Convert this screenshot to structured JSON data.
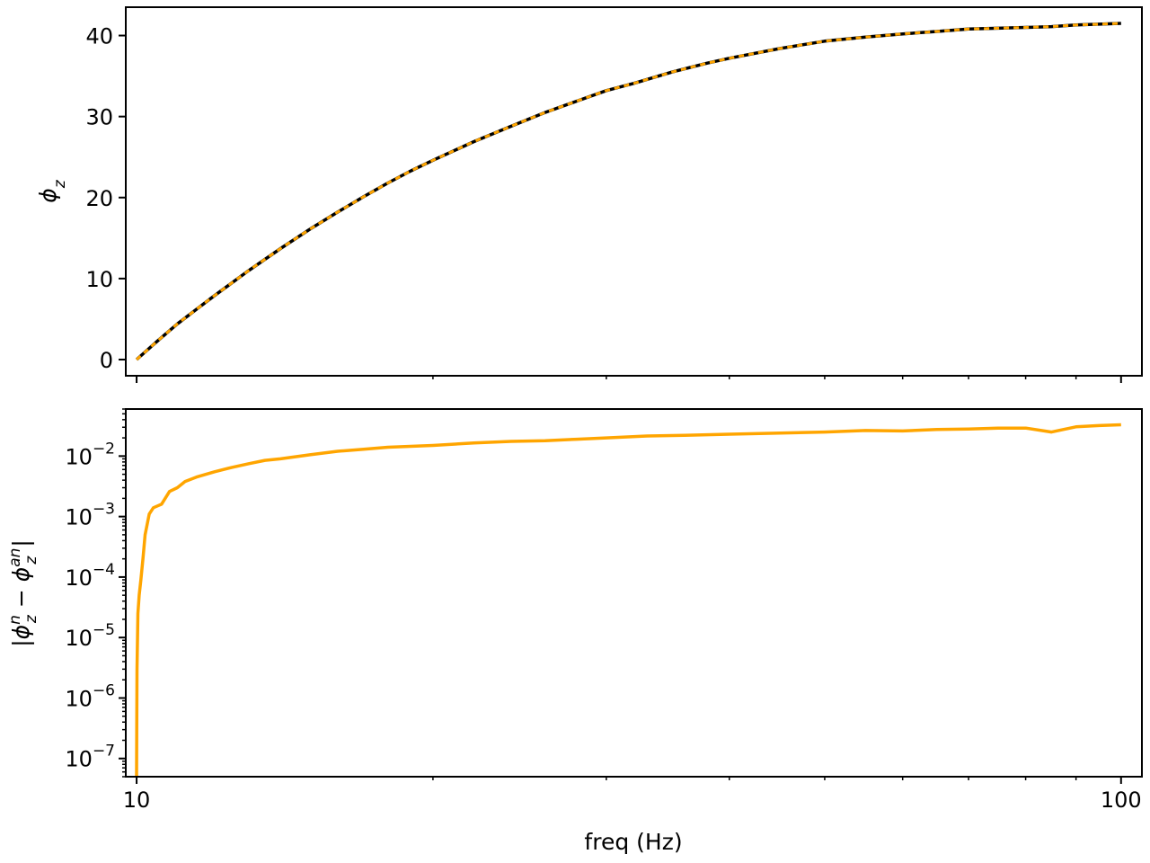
{
  "chart_data": [
    {
      "type": "line",
      "xscale": "log",
      "xlim": [
        9.75,
        105
      ],
      "ylim": [
        -2,
        43.5
      ],
      "xlabel": "",
      "ylabel": "ϕ_z",
      "x_ticks": [
        10,
        100
      ],
      "y_ticks": [
        0,
        10,
        20,
        30,
        40
      ],
      "y_tick_labels": [
        "0",
        "10",
        "20",
        "30",
        "40"
      ],
      "grid": false,
      "series": [
        {
          "style": "solid",
          "color": "#000000",
          "x": [
            10,
            10.5,
            11,
            11.5,
            12,
            13,
            14,
            15,
            16,
            17,
            18,
            19,
            20,
            22,
            24,
            26,
            28,
            30,
            32,
            35,
            38,
            40,
            45,
            50,
            55,
            60,
            65,
            70,
            75,
            80,
            85,
            90,
            95,
            100
          ],
          "y": [
            0.0,
            2.3,
            4.4,
            6.2,
            7.9,
            11.0,
            13.7,
            16.1,
            18.2,
            20.1,
            21.8,
            23.3,
            24.6,
            26.9,
            28.8,
            30.5,
            31.9,
            33.2,
            34.1,
            35.5,
            36.6,
            37.2,
            38.4,
            39.3,
            39.8,
            40.2,
            40.5,
            40.8,
            40.9,
            41.0,
            41.1,
            41.3,
            41.4,
            41.5
          ]
        },
        {
          "style": "dashed",
          "color": "#ffa500",
          "x": [
            10,
            10.5,
            11,
            11.5,
            12,
            13,
            14,
            15,
            16,
            17,
            18,
            19,
            20,
            22,
            24,
            26,
            28,
            30,
            32,
            35,
            38,
            40,
            45,
            50,
            55,
            60,
            65,
            70,
            75,
            80,
            85,
            90,
            95,
            100
          ],
          "y": [
            0.0,
            2.3,
            4.4,
            6.2,
            7.9,
            11.0,
            13.7,
            16.1,
            18.2,
            20.1,
            21.8,
            23.3,
            24.6,
            26.9,
            28.8,
            30.5,
            31.9,
            33.2,
            34.1,
            35.5,
            36.6,
            37.2,
            38.4,
            39.3,
            39.8,
            40.2,
            40.5,
            40.8,
            40.9,
            41.0,
            41.1,
            41.3,
            41.4,
            41.5
          ]
        }
      ]
    },
    {
      "type": "line",
      "xscale": "log",
      "yscale": "log",
      "xlim": [
        9.75,
        105
      ],
      "ylim": [
        5e-08,
        0.06
      ],
      "xlabel": "freq (Hz)",
      "ylabel": "|ϕ_z^n − ϕ_z^an|",
      "x_ticks": [
        10,
        100
      ],
      "x_tick_labels": [
        "10",
        "100"
      ],
      "y_ticks": [
        1e-07,
        1e-06,
        1e-05,
        0.0001,
        0.001,
        0.01
      ],
      "y_tick_labels": [
        [
          "10",
          "−7"
        ],
        [
          "10",
          "−6"
        ],
        [
          "10",
          "−5"
        ],
        [
          "10",
          "−4"
        ],
        [
          "10",
          "−3"
        ],
        [
          "10",
          "−2"
        ]
      ],
      "grid": false,
      "series": [
        {
          "style": "solid",
          "color": "#ffa500",
          "x": [
            10.0,
            10.003,
            10.01,
            10.03,
            10.06,
            10.1,
            10.15,
            10.2,
            10.3,
            10.4,
            10.5,
            10.6,
            10.8,
            11.0,
            11.2,
            11.5,
            12.0,
            12.5,
            13.0,
            13.5,
            14.0,
            15.0,
            16.0,
            17.0,
            18.0,
            20.0,
            22.0,
            24.0,
            26.0,
            28.0,
            30.0,
            33.0,
            36.0,
            40.0,
            45.0,
            50.0,
            55.0,
            60.0,
            65.0,
            70.0,
            75.0,
            80.0,
            85.0,
            90.0,
            95.0,
            100.0
          ],
          "y": [
            5e-08,
            3e-07,
            3e-06,
            2.5e-05,
            5e-05,
            9e-05,
            0.0002,
            0.0005,
            0.0011,
            0.0014,
            0.0015,
            0.0016,
            0.0026,
            0.003,
            0.0038,
            0.0045,
            0.0055,
            0.0065,
            0.0075,
            0.0085,
            0.009,
            0.0105,
            0.012,
            0.013,
            0.014,
            0.015,
            0.0165,
            0.0175,
            0.018,
            0.019,
            0.02,
            0.0215,
            0.022,
            0.023,
            0.024,
            0.025,
            0.0265,
            0.026,
            0.0275,
            0.028,
            0.029,
            0.029,
            0.025,
            0.0305,
            0.032,
            0.033
          ]
        }
      ]
    }
  ]
}
